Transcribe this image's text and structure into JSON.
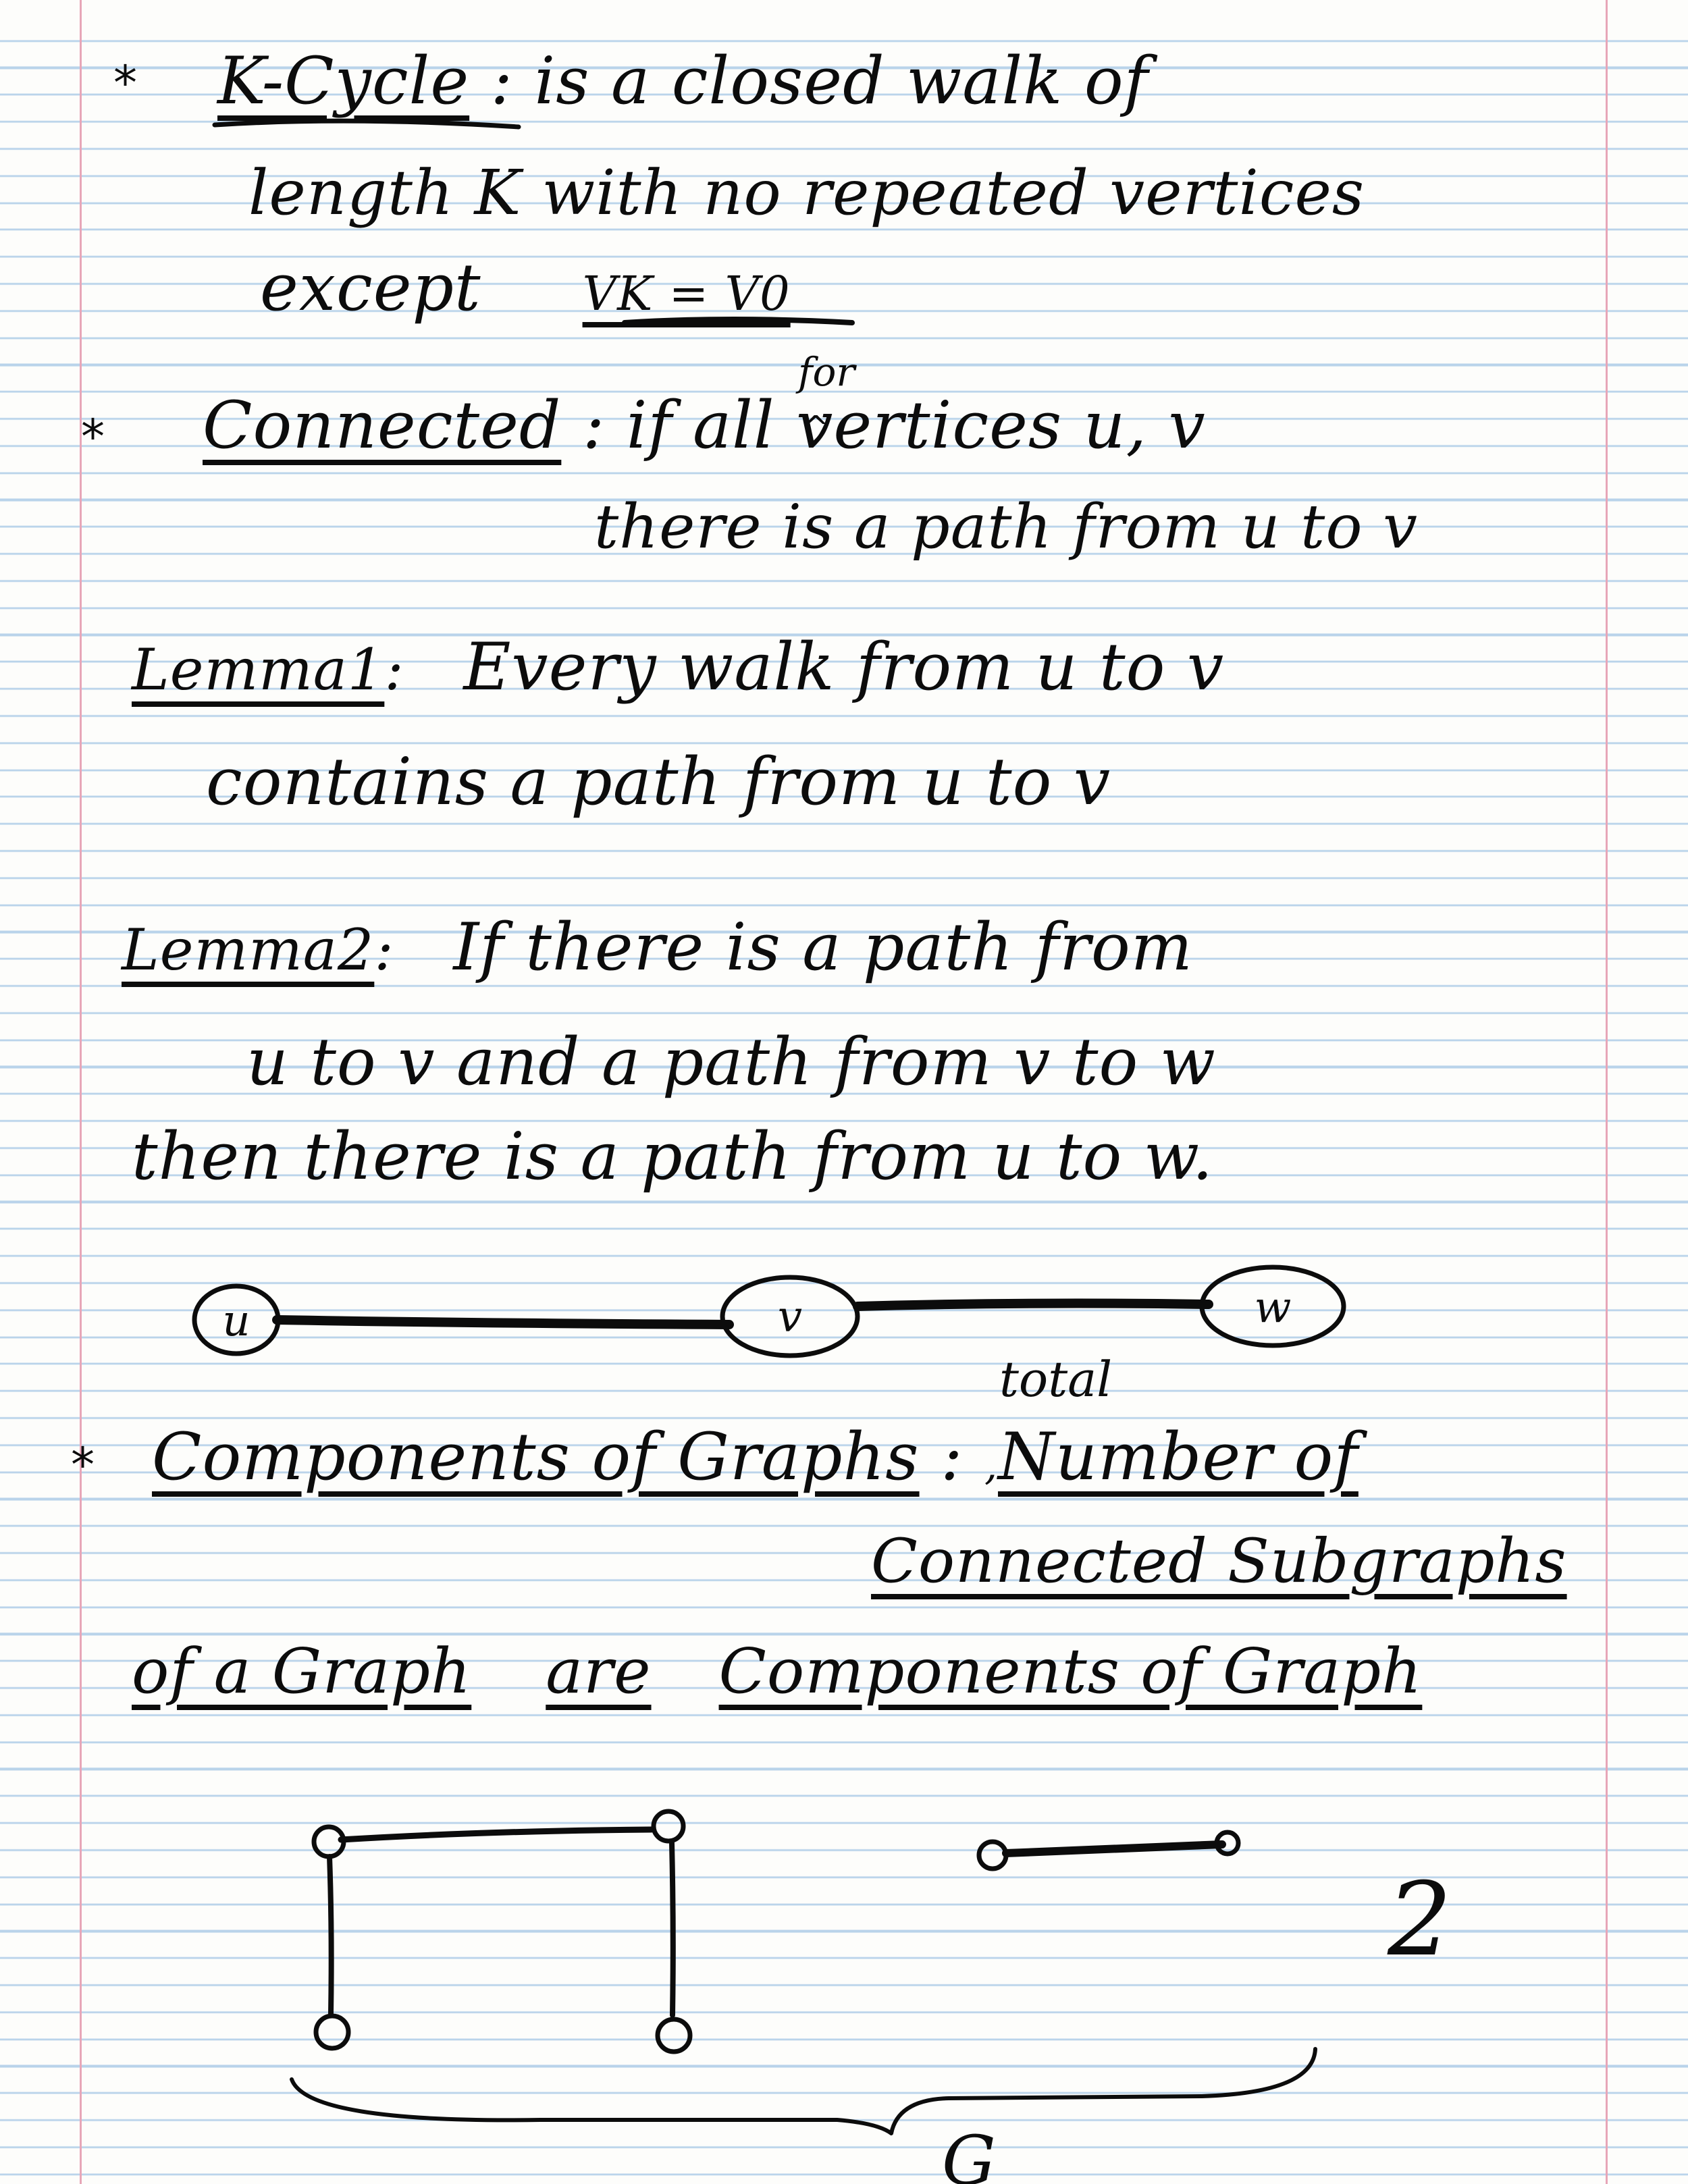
{
  "notes": {
    "cycle": {
      "bullet": "*",
      "term": "K-Cycle",
      "sep": " : ",
      "def_line1": "is a closed walk of",
      "def_line2": "length K with no repeated vertices",
      "except_text": "except",
      "except_cond": "VK = V0"
    },
    "connected": {
      "bullet": "*",
      "term": "Connected",
      "sep": " : ",
      "if_text": "if",
      "inserted_word": "for",
      "caret": "^",
      "def_rest": "all vertices u, v",
      "line2": "there is a path from u to v"
    },
    "lemma1": {
      "label": "Lemma1",
      "sep": ": ",
      "line1": "Every walk from u to v",
      "line2": "contains a path from u to v"
    },
    "lemma2": {
      "label": "Lemma2",
      "sep": ": ",
      "line1": "If there is a path from",
      "line2": "u to v and a path from v to w",
      "line3": "then there is a path from u to w."
    },
    "path_diagram": {
      "nodes": [
        "u",
        "v",
        "w"
      ],
      "annotation": "total"
    },
    "components": {
      "bullet": "*",
      "term": "Components of Graphs",
      "sep": " : ",
      "comma": ",",
      "number_of": "Number of",
      "connected_subgraphs": "Connected Subgraphs",
      "of_a_graph": "of a Graph",
      "are": "are",
      "components_of_graph": "Components of Graph"
    },
    "graph_diagram": {
      "count": "2",
      "brace_label": "G"
    }
  }
}
